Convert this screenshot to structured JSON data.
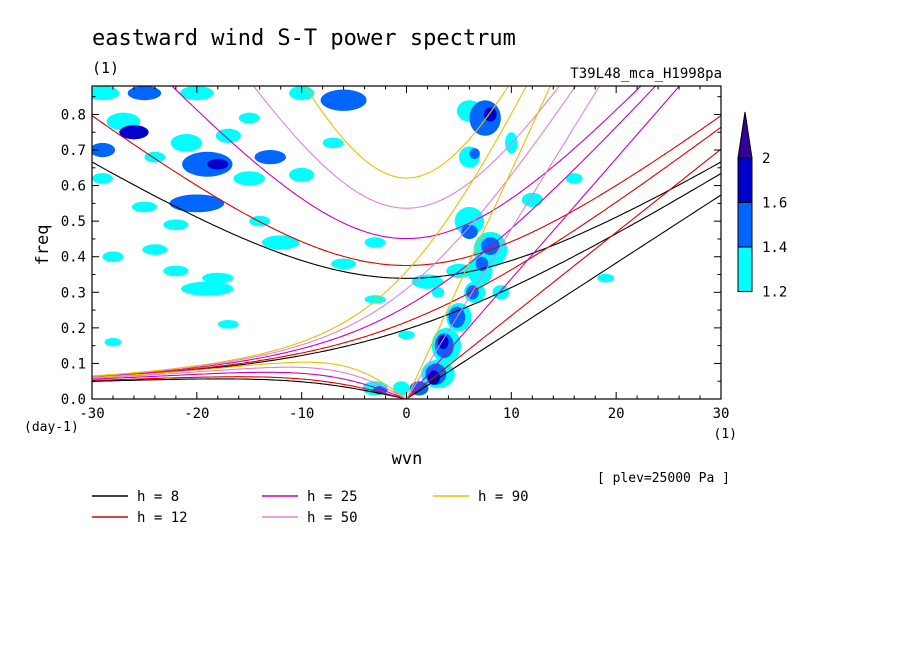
{
  "chart_data": {
    "type": "heatmap",
    "title": "eastward wind S-T power spectrum",
    "subtitle_left": "(1)",
    "subtitle_right": "T39L48_mca_H1998pa",
    "xlabel": "wvn",
    "ylabel": "freq",
    "x_unit": "(1)",
    "y_unit": "(day-1)",
    "note": "[ plev=25000 Pa ]",
    "xlim": [
      -30,
      30
    ],
    "ylim": [
      0,
      0.88
    ],
    "xticks": [
      -30,
      -20,
      -10,
      0,
      10,
      20,
      30
    ],
    "yticks": [
      0.0,
      0.1,
      0.2,
      0.3,
      0.4,
      0.5,
      0.6,
      0.7,
      0.8
    ],
    "xtick_labels": [
      "-30",
      "-20",
      "-10",
      "0",
      "10",
      "20",
      "30"
    ],
    "ytick_labels": [
      "0.0",
      "0.1",
      "0.2",
      "0.3",
      "0.4",
      "0.5",
      "0.6",
      "0.7",
      "0.8"
    ],
    "grid": false,
    "colorbar": {
      "levels": [
        1.2,
        1.4,
        1.6,
        2
      ],
      "labels": [
        "1.2",
        "1.4",
        "1.6",
        "2"
      ],
      "colors": [
        "#00ffff",
        "#0066ff",
        "#0000cc",
        "#330099"
      ],
      "extend": "max"
    },
    "contour_regions": [
      {
        "level": 1.2,
        "x": -29,
        "y": 0.86,
        "rx": 1.6,
        "ry": 0.02
      },
      {
        "level": 1.4,
        "x": -25,
        "y": 0.86,
        "rx": 1.6,
        "ry": 0.02
      },
      {
        "level": 1.2,
        "x": -20,
        "y": 0.86,
        "rx": 1.6,
        "ry": 0.02
      },
      {
        "level": 1.2,
        "x": -10,
        "y": 0.86,
        "rx": 1.2,
        "ry": 0.02
      },
      {
        "level": 1.4,
        "x": -6,
        "y": 0.84,
        "rx": 2.2,
        "ry": 0.03
      },
      {
        "level": 1.2,
        "x": -27,
        "y": 0.78,
        "rx": 1.6,
        "ry": 0.025
      },
      {
        "level": 1.6,
        "x": -26,
        "y": 0.75,
        "rx": 1.4,
        "ry": 0.02
      },
      {
        "level": 1.2,
        "x": -21,
        "y": 0.72,
        "rx": 1.5,
        "ry": 0.025
      },
      {
        "level": 1.2,
        "x": -17,
        "y": 0.74,
        "rx": 1.2,
        "ry": 0.02
      },
      {
        "level": 1.4,
        "x": -29,
        "y": 0.7,
        "rx": 1.2,
        "ry": 0.02
      },
      {
        "level": 1.2,
        "x": -24,
        "y": 0.68,
        "rx": 1.0,
        "ry": 0.015
      },
      {
        "level": 1.4,
        "x": -19,
        "y": 0.66,
        "rx": 2.4,
        "ry": 0.035
      },
      {
        "level": 1.6,
        "x": -18,
        "y": 0.66,
        "rx": 1.0,
        "ry": 0.015
      },
      {
        "level": 1.2,
        "x": -15,
        "y": 0.62,
        "rx": 1.5,
        "ry": 0.02
      },
      {
        "level": 1.4,
        "x": -13,
        "y": 0.68,
        "rx": 1.5,
        "ry": 0.02
      },
      {
        "level": 1.2,
        "x": -10,
        "y": 0.63,
        "rx": 1.2,
        "ry": 0.02
      },
      {
        "level": 1.2,
        "x": -29,
        "y": 0.62,
        "rx": 1.0,
        "ry": 0.015
      },
      {
        "level": 1.4,
        "x": -20,
        "y": 0.55,
        "rx": 2.6,
        "ry": 0.025
      },
      {
        "level": 1.2,
        "x": -25,
        "y": 0.54,
        "rx": 1.2,
        "ry": 0.015
      },
      {
        "level": 1.2,
        "x": -22,
        "y": 0.49,
        "rx": 1.2,
        "ry": 0.015
      },
      {
        "level": 1.2,
        "x": -14,
        "y": 0.5,
        "rx": 1.0,
        "ry": 0.015
      },
      {
        "level": 1.2,
        "x": -12,
        "y": 0.44,
        "rx": 1.8,
        "ry": 0.02
      },
      {
        "level": 1.2,
        "x": -28,
        "y": 0.4,
        "rx": 1.0,
        "ry": 0.015
      },
      {
        "level": 1.2,
        "x": -24,
        "y": 0.42,
        "rx": 1.2,
        "ry": 0.015
      },
      {
        "level": 1.2,
        "x": -22,
        "y": 0.36,
        "rx": 1.2,
        "ry": 0.015
      },
      {
        "level": 1.2,
        "x": -18,
        "y": 0.34,
        "rx": 1.5,
        "ry": 0.015
      },
      {
        "level": 1.2,
        "x": -19,
        "y": 0.31,
        "rx": 2.5,
        "ry": 0.02
      },
      {
        "level": 1.2,
        "x": -6,
        "y": 0.38,
        "rx": 1.2,
        "ry": 0.015
      },
      {
        "level": 1.2,
        "x": -3,
        "y": 0.44,
        "rx": 1.0,
        "ry": 0.015
      },
      {
        "level": 1.2,
        "x": 2,
        "y": 0.33,
        "rx": 1.5,
        "ry": 0.02
      },
      {
        "level": 1.2,
        "x": 5,
        "y": 0.36,
        "rx": 1.2,
        "ry": 0.02
      },
      {
        "level": 1.2,
        "x": -17,
        "y": 0.21,
        "rx": 1.0,
        "ry": 0.012
      },
      {
        "level": 1.2,
        "x": -28,
        "y": 0.16,
        "rx": 0.8,
        "ry": 0.012
      },
      {
        "level": 1.2,
        "x": -3,
        "y": 0.28,
        "rx": 1.0,
        "ry": 0.012
      },
      {
        "level": 1.2,
        "x": 0,
        "y": 0.18,
        "rx": 0.8,
        "ry": 0.012
      },
      {
        "level": 1.2,
        "x": 3,
        "y": 0.3,
        "rx": 0.6,
        "ry": 0.015
      },
      {
        "level": 1.2,
        "x": 9,
        "y": 0.3,
        "rx": 0.8,
        "ry": 0.02
      },
      {
        "level": 1.2,
        "x": 6,
        "y": 0.81,
        "rx": 1.2,
        "ry": 0.03
      },
      {
        "level": 1.4,
        "x": 7.5,
        "y": 0.79,
        "rx": 1.5,
        "ry": 0.05
      },
      {
        "level": 1.6,
        "x": 8,
        "y": 0.8,
        "rx": 0.6,
        "ry": 0.02
      },
      {
        "level": 1.2,
        "x": 6,
        "y": 0.68,
        "rx": 1.0,
        "ry": 0.03
      },
      {
        "level": 1.4,
        "x": 6.5,
        "y": 0.69,
        "rx": 0.5,
        "ry": 0.015
      },
      {
        "level": 1.2,
        "x": 10,
        "y": 0.72,
        "rx": 0.6,
        "ry": 0.03
      },
      {
        "level": 1.2,
        "x": 12,
        "y": 0.56,
        "rx": 1.0,
        "ry": 0.02
      },
      {
        "level": 1.2,
        "x": 6,
        "y": 0.5,
        "rx": 1.4,
        "ry": 0.04
      },
      {
        "level": 1.4,
        "x": 6,
        "y": 0.47,
        "rx": 0.8,
        "ry": 0.02
      },
      {
        "level": 1.2,
        "x": 8,
        "y": 0.42,
        "rx": 1.6,
        "ry": 0.05
      },
      {
        "level": 1.4,
        "x": 8,
        "y": 0.43,
        "rx": 0.9,
        "ry": 0.025
      },
      {
        "level": 1.2,
        "x": 7,
        "y": 0.36,
        "rx": 1.2,
        "ry": 0.04
      },
      {
        "level": 1.4,
        "x": 7.2,
        "y": 0.38,
        "rx": 0.6,
        "ry": 0.02
      },
      {
        "level": 1.2,
        "x": 6.5,
        "y": 0.3,
        "rx": 1.0,
        "ry": 0.03
      },
      {
        "level": 1.4,
        "x": 6.3,
        "y": 0.3,
        "rx": 0.6,
        "ry": 0.02
      },
      {
        "level": 1.2,
        "x": 5,
        "y": 0.23,
        "rx": 1.2,
        "ry": 0.04
      },
      {
        "level": 1.4,
        "x": 4.8,
        "y": 0.23,
        "rx": 0.8,
        "ry": 0.03
      },
      {
        "level": 1.2,
        "x": 3.8,
        "y": 0.15,
        "rx": 1.4,
        "ry": 0.05
      },
      {
        "level": 1.4,
        "x": 3.6,
        "y": 0.15,
        "rx": 0.9,
        "ry": 0.035
      },
      {
        "level": 1.6,
        "x": 3.5,
        "y": 0.16,
        "rx": 0.5,
        "ry": 0.02
      },
      {
        "level": 1.2,
        "x": 3,
        "y": 0.07,
        "rx": 1.6,
        "ry": 0.04
      },
      {
        "level": 1.4,
        "x": 2.8,
        "y": 0.07,
        "rx": 1.0,
        "ry": 0.03
      },
      {
        "level": 1.6,
        "x": 2.6,
        "y": 0.06,
        "rx": 0.6,
        "ry": 0.02
      },
      {
        "level": 1.2,
        "x": -3,
        "y": 0.03,
        "rx": 1.2,
        "ry": 0.02
      },
      {
        "level": 1.4,
        "x": -2.5,
        "y": 0.025,
        "rx": 0.7,
        "ry": 0.012
      },
      {
        "level": 1.2,
        "x": -0.5,
        "y": 0.03,
        "rx": 0.8,
        "ry": 0.02
      },
      {
        "level": 1.4,
        "x": 1.2,
        "y": 0.03,
        "rx": 0.9,
        "ry": 0.02
      },
      {
        "level": 1.2,
        "x": 19,
        "y": 0.34,
        "rx": 0.8,
        "ry": 0.012
      },
      {
        "level": 1.2,
        "x": 16,
        "y": 0.62,
        "rx": 0.8,
        "ry": 0.015
      },
      {
        "level": 1.2,
        "x": -7,
        "y": 0.72,
        "rx": 1.0,
        "ry": 0.015
      },
      {
        "level": 1.2,
        "x": -15,
        "y": 0.79,
        "rx": 1.0,
        "ry": 0.015
      }
    ],
    "series": [
      {
        "name": "h = 8",
        "equivalent_depth": 8,
        "color": "#000000"
      },
      {
        "name": "h = 12",
        "equivalent_depth": 12,
        "color": "#dd0000"
      },
      {
        "name": "h = 25",
        "equivalent_depth": 25,
        "color": "#cc00bb"
      },
      {
        "name": "h = 50",
        "equivalent_depth": 50,
        "color": "#e080e0"
      },
      {
        "name": "h = 90",
        "equivalent_depth": 90,
        "color": "#e8c000"
      }
    ]
  }
}
